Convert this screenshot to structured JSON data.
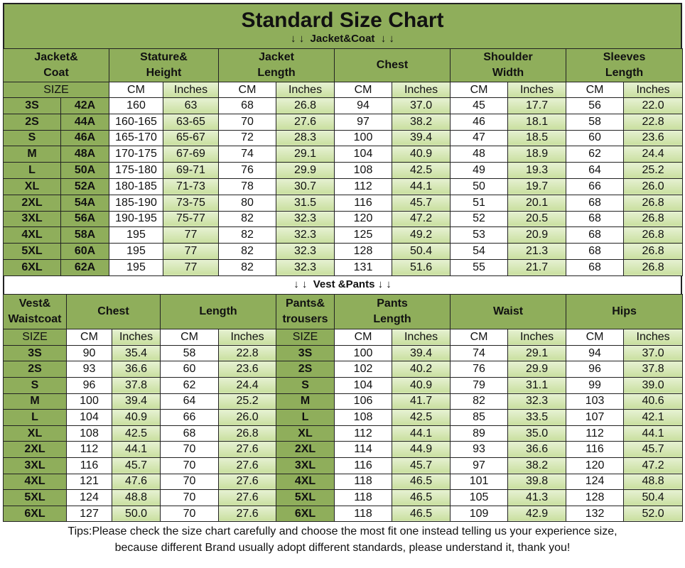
{
  "title": "Standard Size Chart",
  "jacket_section": {
    "label": "↓ ↓  Jacket&Coat  ↓ ↓",
    "headers": [
      "Jacket&\nCoat",
      "Stature&\nHeight",
      "Jacket\nLength",
      "Chest",
      "Shoulder\nWidth",
      "Sleeves\nLength"
    ],
    "units": [
      "SIZE",
      "CM",
      "Inches",
      "CM",
      "Inches",
      "CM",
      "Inches",
      "CM",
      "Inches",
      "CM",
      "Inches"
    ],
    "rows": [
      [
        "3S",
        "42A",
        "160",
        "63",
        "68",
        "26.8",
        "94",
        "37.0",
        "45",
        "17.7",
        "56",
        "22.0"
      ],
      [
        "2S",
        "44A",
        "160-165",
        "63-65",
        "70",
        "27.6",
        "97",
        "38.2",
        "46",
        "18.1",
        "58",
        "22.8"
      ],
      [
        "S",
        "46A",
        "165-170",
        "65-67",
        "72",
        "28.3",
        "100",
        "39.4",
        "47",
        "18.5",
        "60",
        "23.6"
      ],
      [
        "M",
        "48A",
        "170-175",
        "67-69",
        "74",
        "29.1",
        "104",
        "40.9",
        "48",
        "18.9",
        "62",
        "24.4"
      ],
      [
        "L",
        "50A",
        "175-180",
        "69-71",
        "76",
        "29.9",
        "108",
        "42.5",
        "49",
        "19.3",
        "64",
        "25.2"
      ],
      [
        "XL",
        "52A",
        "180-185",
        "71-73",
        "78",
        "30.7",
        "112",
        "44.1",
        "50",
        "19.7",
        "66",
        "26.0"
      ],
      [
        "2XL",
        "54A",
        "185-190",
        "73-75",
        "80",
        "31.5",
        "116",
        "45.7",
        "51",
        "20.1",
        "68",
        "26.8"
      ],
      [
        "3XL",
        "56A",
        "190-195",
        "75-77",
        "82",
        "32.3",
        "120",
        "47.2",
        "52",
        "20.5",
        "68",
        "26.8"
      ],
      [
        "4XL",
        "58A",
        "195",
        "77",
        "82",
        "32.3",
        "125",
        "49.2",
        "53",
        "20.9",
        "68",
        "26.8"
      ],
      [
        "5XL",
        "60A",
        "195",
        "77",
        "82",
        "32.3",
        "128",
        "50.4",
        "54",
        "21.3",
        "68",
        "26.8"
      ],
      [
        "6XL",
        "62A",
        "195",
        "77",
        "82",
        "32.3",
        "131",
        "51.6",
        "55",
        "21.7",
        "68",
        "26.8"
      ]
    ]
  },
  "vest_section": {
    "label": "↓ ↓  Vest &Pants ↓ ↓",
    "headers": [
      "Vest&\nWaistcoat",
      "Chest",
      "Length",
      "Pants&\ntrousers",
      "Pants\nLength",
      "Waist",
      "Hips"
    ],
    "units": [
      "SIZE",
      "CM",
      "Inches",
      "CM",
      "Inches",
      "SIZE",
      "CM",
      "Inches",
      "CM",
      "Inches",
      "CM",
      "Inches"
    ],
    "rows": [
      [
        "3S",
        "90",
        "35.4",
        "58",
        "22.8",
        "3S",
        "100",
        "39.4",
        "74",
        "29.1",
        "94",
        "37.0"
      ],
      [
        "2S",
        "93",
        "36.6",
        "60",
        "23.6",
        "2S",
        "102",
        "40.2",
        "76",
        "29.9",
        "96",
        "37.8"
      ],
      [
        "S",
        "96",
        "37.8",
        "62",
        "24.4",
        "S",
        "104",
        "40.9",
        "79",
        "31.1",
        "99",
        "39.0"
      ],
      [
        "M",
        "100",
        "39.4",
        "64",
        "25.2",
        "M",
        "106",
        "41.7",
        "82",
        "32.3",
        "103",
        "40.6"
      ],
      [
        "L",
        "104",
        "40.9",
        "66",
        "26.0",
        "L",
        "108",
        "42.5",
        "85",
        "33.5",
        "107",
        "42.1"
      ],
      [
        "XL",
        "108",
        "42.5",
        "68",
        "26.8",
        "XL",
        "112",
        "44.1",
        "89",
        "35.0",
        "112",
        "44.1"
      ],
      [
        "2XL",
        "112",
        "44.1",
        "70",
        "27.6",
        "2XL",
        "114",
        "44.9",
        "93",
        "36.6",
        "116",
        "45.7"
      ],
      [
        "3XL",
        "116",
        "45.7",
        "70",
        "27.6",
        "3XL",
        "116",
        "45.7",
        "97",
        "38.2",
        "120",
        "47.2"
      ],
      [
        "4XL",
        "121",
        "47.6",
        "70",
        "27.6",
        "4XL",
        "118",
        "46.5",
        "101",
        "39.8",
        "124",
        "48.8"
      ],
      [
        "5XL",
        "124",
        "48.8",
        "70",
        "27.6",
        "5XL",
        "118",
        "46.5",
        "105",
        "41.3",
        "128",
        "50.4"
      ],
      [
        "6XL",
        "127",
        "50.0",
        "70",
        "27.6",
        "6XL",
        "118",
        "46.5",
        "109",
        "42.9",
        "132",
        "52.0"
      ]
    ]
  },
  "tips": [
    "Tips:Please check the size chart carefully and choose the most fit one instead telling us your experience size,",
    "because different Brand usually adopt different standards, please understand it, thank you!"
  ]
}
